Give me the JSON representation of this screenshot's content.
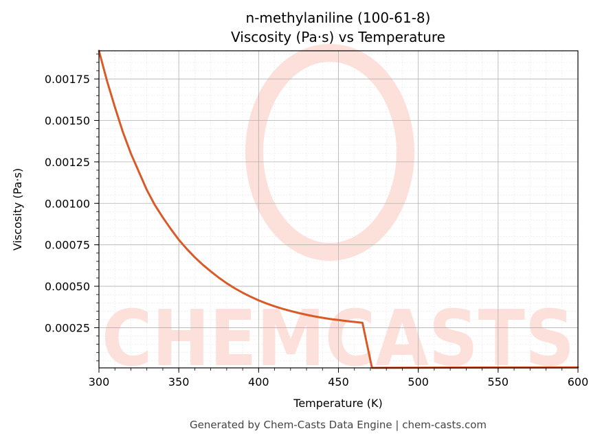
{
  "chart_data": {
    "type": "line",
    "title": "n-methylaniline (100-61-8)",
    "subtitle": "Viscosity (Pa·s) vs Temperature",
    "xlabel": "Temperature (K)",
    "ylabel": "Viscosity (Pa·s)",
    "xlim": [
      300,
      600
    ],
    "ylim": [
      7.7e-06,
      0.00192
    ],
    "xticks": [
      300,
      350,
      400,
      450,
      500,
      550,
      600
    ],
    "xtick_labels": [
      "300",
      "350",
      "400",
      "450",
      "500",
      "550",
      "600"
    ],
    "yticks": [
      0.00025,
      0.0005,
      0.00075,
      0.001,
      0.00125,
      0.0015,
      0.00175
    ],
    "ytick_labels": [
      "0.00025",
      "0.00050",
      "0.00075",
      "0.00100",
      "0.00125",
      "0.00150",
      "0.00175"
    ],
    "grid": true,
    "series": [
      {
        "color": "#d95a27",
        "x": [
          300,
          305,
          310,
          315,
          320,
          325,
          330,
          335,
          340,
          345,
          350,
          355,
          360,
          365,
          370,
          375,
          380,
          385,
          390,
          395,
          400,
          405,
          410,
          415,
          420,
          425,
          430,
          435,
          440,
          445,
          450,
          455,
          460,
          465,
          471,
          480,
          500,
          550,
          600
        ],
        "y": [
          0.00192,
          0.00174,
          0.00158,
          0.00143,
          0.0013,
          0.00119,
          0.00108,
          0.00099,
          0.000915,
          0.000845,
          0.00078,
          0.000725,
          0.000675,
          0.00063,
          0.00059,
          0.000552,
          0.000518,
          0.000488,
          0.000461,
          0.000437,
          0.000415,
          0.000396,
          0.000379,
          0.000364,
          0.000351,
          0.000339,
          0.000328,
          0.000318,
          0.00031,
          0.000302,
          0.000296,
          0.00029,
          0.000285,
          0.00028,
          7.7e-06,
          8e-06,
          9e-06,
          1e-05,
          1.1e-05
        ]
      }
    ]
  },
  "watermark": {
    "text": "CHEMCASTS",
    "color": "#fde0da"
  },
  "footer": {
    "text": "Generated by Chem-Casts Data Engine | chem-casts.com"
  }
}
